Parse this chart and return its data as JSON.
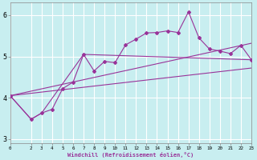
{
  "xlabel": "Windchill (Refroidissement éolien,°C)",
  "xlim": [
    0,
    23
  ],
  "ylim": [
    2.9,
    6.3
  ],
  "yticks": [
    3,
    4,
    5,
    6
  ],
  "xticks": [
    0,
    2,
    3,
    4,
    5,
    6,
    7,
    8,
    9,
    10,
    11,
    12,
    13,
    14,
    15,
    16,
    17,
    18,
    19,
    20,
    21,
    22,
    23
  ],
  "background_color": "#c8eef0",
  "line_color": "#993399",
  "grid_color": "#aadddd",
  "line1_x": [
    0,
    2,
    3,
    4,
    5,
    6,
    7,
    8,
    9,
    10,
    11,
    12,
    13,
    14,
    15,
    16,
    17,
    18,
    19,
    20,
    21,
    22,
    23
  ],
  "line1_y": [
    4.05,
    3.48,
    3.63,
    3.72,
    4.22,
    4.38,
    5.05,
    4.65,
    4.88,
    4.85,
    5.28,
    5.42,
    5.57,
    5.58,
    5.62,
    5.58,
    6.08,
    5.45,
    5.18,
    5.13,
    5.07,
    5.27,
    4.92
  ],
  "line2_x": [
    0,
    2,
    3,
    7,
    23
  ],
  "line2_y": [
    4.05,
    3.48,
    3.63,
    5.05,
    4.92
  ],
  "line3_x": [
    0,
    23
  ],
  "line3_y": [
    4.05,
    5.32
  ],
  "line4_x": [
    0,
    23
  ],
  "line4_y": [
    4.05,
    4.72
  ]
}
